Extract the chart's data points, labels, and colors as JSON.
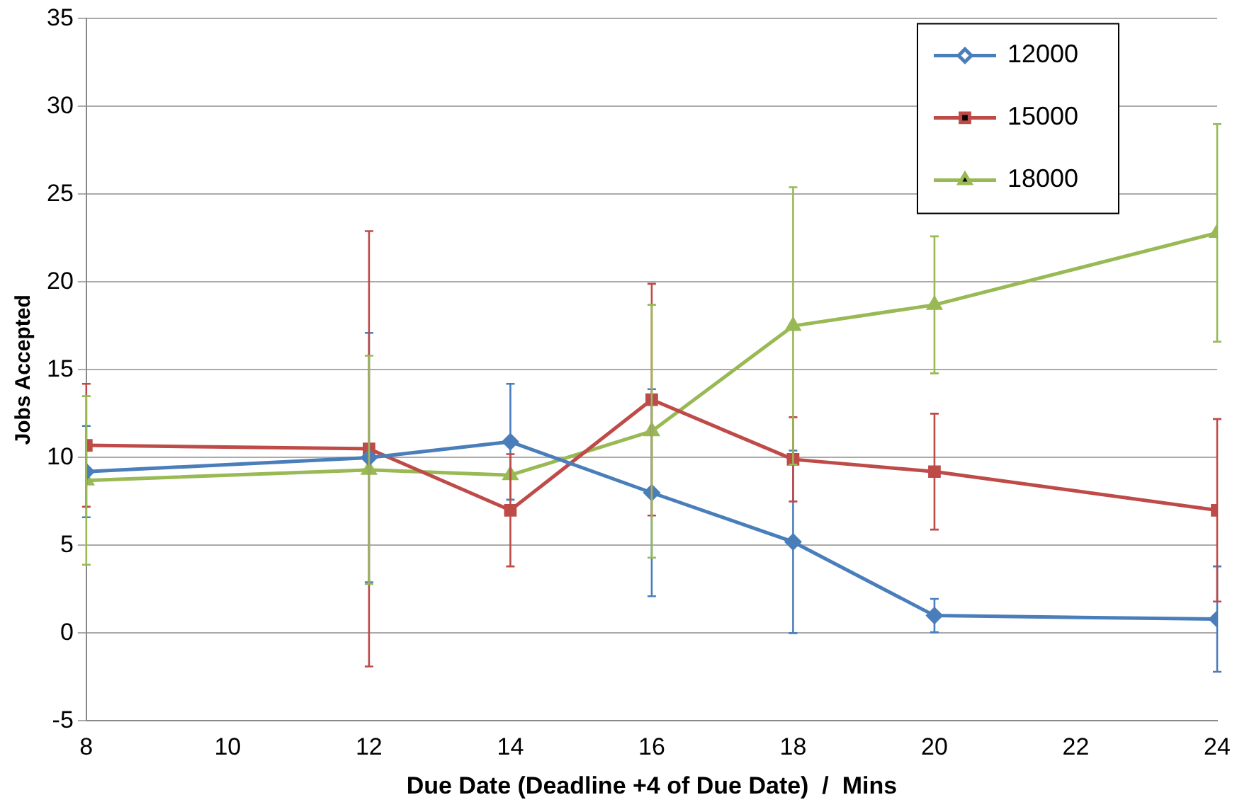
{
  "chart_data": {
    "type": "line",
    "xlabel": "Due Date (Deadline +4 of Due Date)  /  Mins",
    "ylabel": "Jobs Accepted",
    "x": [
      8,
      12,
      14,
      16,
      18,
      20,
      24
    ],
    "xlim": [
      8,
      24
    ],
    "xticks": [
      8,
      10,
      12,
      14,
      16,
      18,
      20,
      22,
      24
    ],
    "ylim": [
      -5,
      35
    ],
    "yticks": [
      -5,
      0,
      5,
      10,
      15,
      20,
      25,
      30,
      35
    ],
    "grid": "y",
    "legend": "top right",
    "line_style": "solid",
    "series": [
      {
        "name": "12000",
        "color": "#4a7ebb",
        "marker": "diamond",
        "values": [
          9.2,
          10.0,
          10.9,
          8.0,
          5.2,
          1.0,
          0.8
        ],
        "errors": [
          2.6,
          7.1,
          3.3,
          5.9,
          5.2,
          0.95,
          3.0
        ]
      },
      {
        "name": "15000",
        "color": "#be4b48",
        "marker": "square",
        "values": [
          10.7,
          10.5,
          7.0,
          13.3,
          9.9,
          9.2,
          7.0
        ],
        "errors": [
          3.5,
          12.4,
          3.2,
          6.6,
          2.4,
          3.3,
          5.2
        ]
      },
      {
        "name": "18000",
        "color": "#98b954",
        "marker": "triangle",
        "values": [
          8.7,
          9.3,
          9.0,
          11.5,
          17.5,
          18.7,
          22.8
        ],
        "errors": [
          4.8,
          6.5,
          null,
          7.2,
          7.9,
          3.9,
          6.2
        ]
      }
    ]
  }
}
